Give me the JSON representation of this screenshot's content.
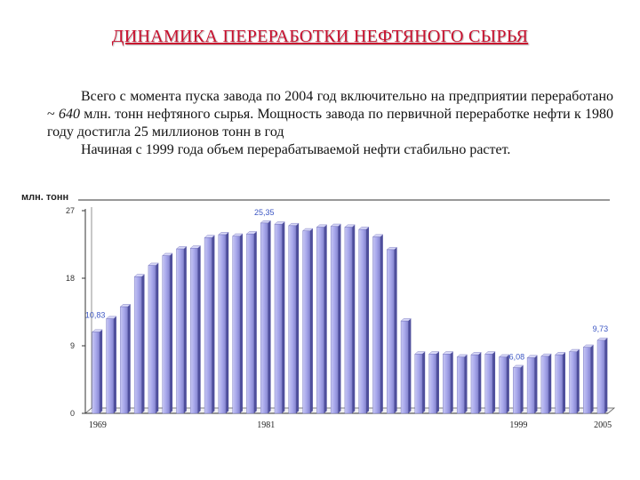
{
  "title": "ДИНАМИКА ПЕРЕРАБОТКИ НЕФТЯНОГО СЫРЬЯ",
  "text": {
    "p1_a": "Всего с момента пуска завода по 2004 год включительно на предприятии переработано ~ ",
    "p1_em": "640",
    "p1_b": " млн. тонн нефтяного сырья. Мощность завода по первичной переработке нефти к 1980 году достигла 25 миллионов тонн в год",
    "p2": "Начиная с 1999 года объем перерабатываемой нефти стабильно растет."
  },
  "colors": {
    "title": "#c8102e",
    "bar": "#9e9ee8",
    "bar_dark": "#5555aa",
    "label": "#3d57c4"
  },
  "chart_data": {
    "type": "bar",
    "title": "",
    "ylabel": "млн. тонн",
    "xlabel": "",
    "ylim": [
      0,
      27
    ],
    "yticks": [
      0,
      9,
      18,
      27
    ],
    "x": [
      1969,
      1970,
      1971,
      1972,
      1973,
      1974,
      1975,
      1976,
      1977,
      1978,
      1979,
      1980,
      1981,
      1982,
      1983,
      1984,
      1985,
      1986,
      1987,
      1988,
      1989,
      1990,
      1991,
      1992,
      1993,
      1994,
      1995,
      1996,
      1997,
      1998,
      1999,
      2000,
      2001,
      2002,
      2003,
      2004,
      2005
    ],
    "values": [
      10.83,
      12.6,
      14.2,
      18.2,
      19.7,
      21.0,
      21.9,
      22.0,
      23.4,
      23.8,
      23.6,
      23.9,
      25.35,
      25.2,
      25.0,
      24.3,
      24.8,
      24.9,
      24.8,
      24.5,
      23.5,
      21.8,
      12.3,
      7.9,
      7.9,
      7.9,
      7.5,
      7.8,
      7.9,
      7.5,
      6.08,
      7.4,
      7.6,
      7.8,
      8.2,
      8.8,
      9.73
    ],
    "xtick_labels": [
      "1969",
      "1981",
      "1999",
      "2005"
    ],
    "data_labels": [
      {
        "x": 1969,
        "text": "10,83"
      },
      {
        "x": 1981,
        "text": "25,35"
      },
      {
        "x": 1999,
        "text": "6,08"
      },
      {
        "x": 2005,
        "text": "9,73"
      }
    ],
    "grid": false,
    "legend": "none"
  }
}
